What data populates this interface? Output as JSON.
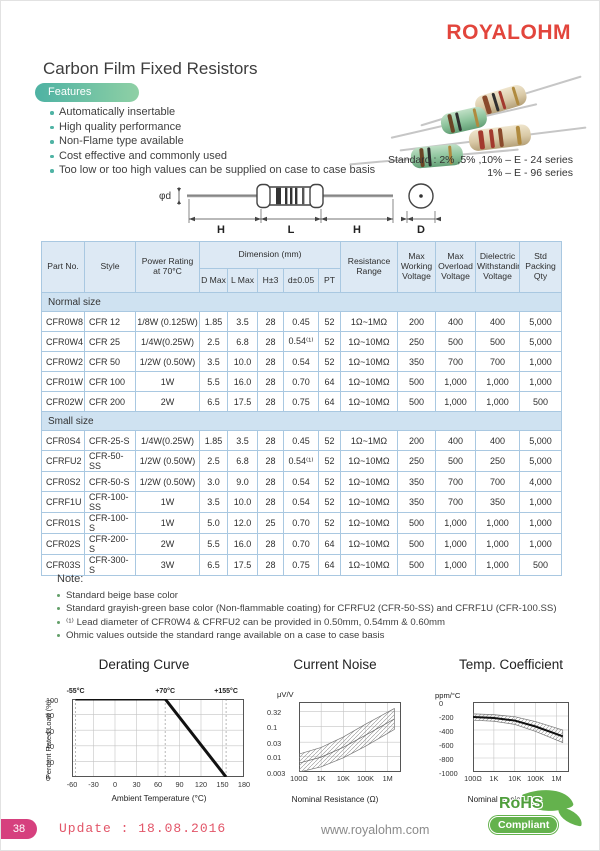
{
  "brand": {
    "logo": "ROYALOHM",
    "color": "#e2453c"
  },
  "page_title": "Carbon Film Fixed Resistors",
  "features": {
    "label": "Features",
    "items": [
      "Automatically insertable",
      "High quality performance",
      "Non-Flame type available",
      "Cost effective and commonly used",
      "Too low or too high values can be supplied on case to case basis"
    ]
  },
  "standard_note": {
    "line1": "Standard : 2% ,5% ,10% – E - 24 series",
    "line2": "1% – E - 96 series"
  },
  "drawing": {
    "phi_d": "φd",
    "h_left": "H",
    "l": "L",
    "h_right": "H",
    "dia": "D"
  },
  "table": {
    "headers": {
      "part_no": "Part No.",
      "style": "Style",
      "power": "Power Rating at 70°C",
      "dimension": "Dimension (mm)",
      "d_max": "D Max",
      "l_max": "L Max",
      "h": "H±3",
      "d_lead": "d±0.05",
      "pt": "PT",
      "resistance": "Resistance Range",
      "max_working": "Max Working Voltage",
      "max_overload": "Max Overload Voltage",
      "dielectric": "Dielectric Withstanding Voltage",
      "packing": "Std Packing Qty"
    },
    "sections": [
      {
        "name": "Normal size",
        "rows": [
          [
            "CFR0W8",
            "CFR 12",
            "1/8W (0.125W)",
            "1.85",
            "3.5",
            "28",
            "0.45",
            "52",
            "1Ω~1MΩ",
            "200",
            "400",
            "400",
            "5,000"
          ],
          [
            "CFR0W4",
            "CFR 25",
            "1/4W(0.25W)",
            "2.5",
            "6.8",
            "28",
            "0.54⁽¹⁾",
            "52",
            "1Ω~10MΩ",
            "250",
            "500",
            "500",
            "5,000"
          ],
          [
            "CFR0W2",
            "CFR 50",
            "1/2W (0.50W)",
            "3.5",
            "10.0",
            "28",
            "0.54",
            "52",
            "1Ω~10MΩ",
            "350",
            "700",
            "700",
            "1,000"
          ],
          [
            "CFR01W",
            "CFR 100",
            "1W",
            "5.5",
            "16.0",
            "28",
            "0.70",
            "64",
            "1Ω~10MΩ",
            "500",
            "1,000",
            "1,000",
            "1,000"
          ],
          [
            "CFR02W",
            "CFR 200",
            "2W",
            "6.5",
            "17.5",
            "28",
            "0.75",
            "64",
            "1Ω~10MΩ",
            "500",
            "1,000",
            "1,000",
            "500"
          ]
        ]
      },
      {
        "name": "Small size",
        "rows": [
          [
            "CFR0S4",
            "CFR-25-S",
            "1/4W(0.25W)",
            "1.85",
            "3.5",
            "28",
            "0.45",
            "52",
            "1Ω~1MΩ",
            "200",
            "400",
            "400",
            "5,000"
          ],
          [
            "CFRFU2",
            "CFR-50-SS",
            "1/2W (0.50W)",
            "2.5",
            "6.8",
            "28",
            "0.54⁽¹⁾",
            "52",
            "1Ω~10MΩ",
            "250",
            "500",
            "250",
            "5,000"
          ],
          [
            "CFR0S2",
            "CFR-50-S",
            "1/2W (0.50W)",
            "3.0",
            "9.0",
            "28",
            "0.54",
            "52",
            "1Ω~10MΩ",
            "350",
            "700",
            "700",
            "4,000"
          ],
          [
            "CFRF1U",
            "CFR-100-SS",
            "1W",
            "3.5",
            "10.0",
            "28",
            "0.54",
            "52",
            "1Ω~10MΩ",
            "350",
            "700",
            "350",
            "1,000"
          ],
          [
            "CFR01S",
            "CFR-100-S",
            "1W",
            "5.0",
            "12.0",
            "25",
            "0.70",
            "52",
            "1Ω~10MΩ",
            "500",
            "1,000",
            "1,000",
            "1,000"
          ],
          [
            "CFR02S",
            "CFR-200-S",
            "2W",
            "5.5",
            "16.0",
            "28",
            "0.70",
            "64",
            "1Ω~10MΩ",
            "500",
            "1,000",
            "1,000",
            "1,000"
          ],
          [
            "CFR03S",
            "CFR-300-S",
            "3W",
            "6.5",
            "17.5",
            "28",
            "0.75",
            "64",
            "1Ω~10MΩ",
            "500",
            "1,000",
            "1,000",
            "500"
          ]
        ]
      }
    ]
  },
  "note": {
    "title": "Note:",
    "items": [
      "Standard beige base color",
      "Standard grayish-green base color (Non-flammable coating) for CFRFU2 (CFR-50-SS) and CFRF1U (CFR-100.SS)",
      "⁽¹⁾ Lead diameter of CFR0W4 & CFRFU2 can be provided in 0.50mm, 0.54mm & 0.60mm",
      "Ohmic values outside the standard range available on a case to case basis"
    ]
  },
  "chart_data": [
    {
      "type": "line",
      "title": "Derating Curve",
      "xlabel": "Ambient Temperature (°C)",
      "ylabel": "Percent Rated Load (%)",
      "xlim": [
        -60,
        180
      ],
      "ylim": [
        0,
        100
      ],
      "x_ticks": [
        -60,
        -30,
        0,
        30,
        60,
        90,
        120,
        150,
        180
      ],
      "y_ticks": [
        0,
        20,
        40,
        60,
        80,
        100
      ],
      "grid": true,
      "annotations": [
        {
          "text": "-55°C",
          "x": -55
        },
        {
          "text": "+70°C",
          "x": 70
        },
        {
          "text": "+155°C",
          "x": 155
        }
      ],
      "series": [
        {
          "name": "derating",
          "points": [
            [
              -55,
              100
            ],
            [
              70,
              100
            ],
            [
              155,
              0
            ]
          ]
        }
      ]
    },
    {
      "type": "area",
      "title": "Current Noise",
      "ylabel": "μV/V",
      "xlabel": "Nominal Resistance (Ω)",
      "x_ticks": [
        "100Ω",
        "1K",
        "10K",
        "100K",
        "1M"
      ],
      "x_tick_decades": [
        0,
        1,
        2,
        3,
        4
      ],
      "y_ticks": [
        0.32,
        0.1,
        0.03,
        0.01,
        0.003
      ],
      "x_decade_range": [
        0,
        4.6
      ],
      "ylog_range": [
        -0.18,
        -2.52
      ],
      "band_x": [
        0,
        1,
        2,
        3,
        4.3
      ],
      "band_upper": [
        0.012,
        0.02,
        0.045,
        0.12,
        0.4
      ],
      "band_lower": [
        0.003,
        0.0045,
        0.009,
        0.022,
        0.08
      ],
      "grid": true
    },
    {
      "type": "area",
      "title": "Temp. Coefficient",
      "ylabel": "ppm/°C",
      "xlabel": "Nominal Resistance (Ω)",
      "x_ticks": [
        "100Ω",
        "1K",
        "10K",
        "100K",
        "1M"
      ],
      "x_tick_decades": [
        0,
        1,
        2,
        3,
        4
      ],
      "y_ticks": [
        0,
        -200,
        -400,
        -600,
        -800,
        -1000
      ],
      "ylim": [
        0,
        -1000
      ],
      "x_decade_range": [
        0,
        4.6
      ],
      "band_x": [
        0,
        1,
        2,
        3,
        4.3
      ],
      "band_upper": [
        -170,
        -180,
        -210,
        -280,
        -400
      ],
      "band_lower": [
        -260,
        -275,
        -320,
        -420,
        -580
      ],
      "center": [
        -215,
        -228,
        -265,
        -350,
        -490
      ],
      "grid": true
    }
  ],
  "footer": {
    "page_number": "38",
    "update": "Update : 18.08.2016",
    "website": "www.royalohm.com",
    "rohs_line1": "RoHS",
    "rohs_line2": "Compliant"
  }
}
